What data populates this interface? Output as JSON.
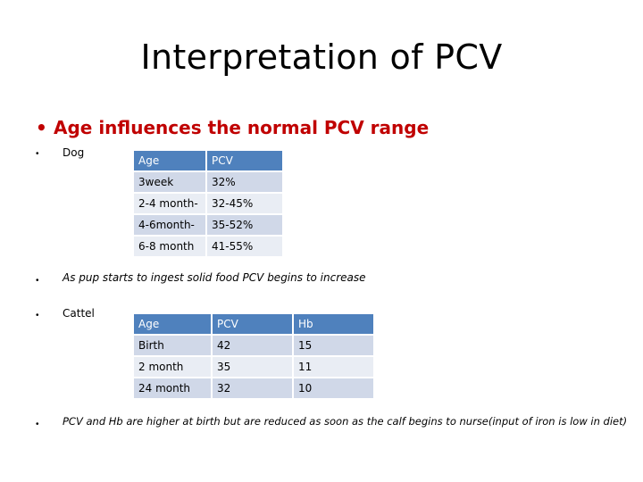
{
  "title": "Interpretation of PCV",
  "main_point": "Age influences the normal PCV range",
  "sections": {
    "dog_label": "Dog",
    "dog_table": {
      "headers": [
        "Age",
        "PCV"
      ],
      "rows": [
        [
          "3week",
          "32%"
        ],
        [
          "2-4 month-",
          "32-45%"
        ],
        [
          "4-6month-",
          "35-52%"
        ],
        [
          "6-8 month",
          "41-55%"
        ]
      ]
    },
    "pup_note": "As pup starts to ingest solid food PCV begins to increase",
    "cattle_label": "Cattel",
    "cattle_table": {
      "headers": [
        "Age",
        "PCV",
        "Hb"
      ],
      "rows": [
        [
          "Birth",
          "42",
          "15"
        ],
        [
          "2 month",
          "35",
          "11"
        ],
        [
          "24 month",
          "32",
          "10"
        ]
      ]
    },
    "calf_note": "PCV and Hb are higher at birth but are reduced as soon as the calf begins to nurse(input of iron is low in diet)"
  },
  "colors": {
    "title_accent": "#c00000",
    "table_header": "#4f81bd",
    "row_odd": "#d0d8e8",
    "row_even": "#e9edf4"
  }
}
